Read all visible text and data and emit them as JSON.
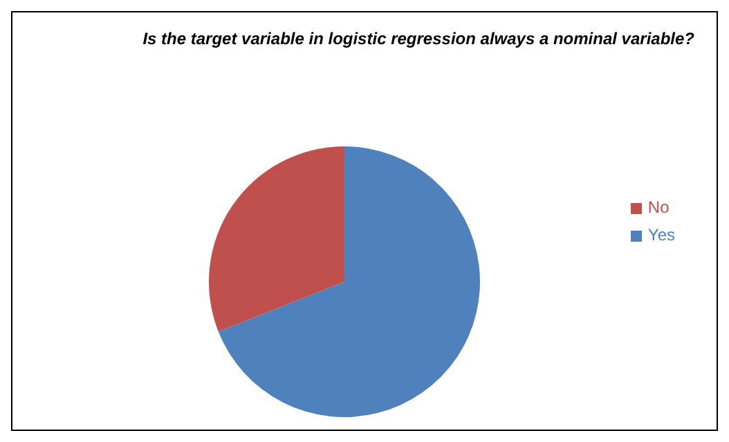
{
  "chart_data": {
    "type": "pie",
    "title": "Is the target variable in logistic regression always a nominal variable?",
    "categories": [
      "Yes",
      "No"
    ],
    "values": [
      69,
      31
    ],
    "colors": [
      "#4f81bd",
      "#c0504d"
    ],
    "legend": "right"
  }
}
